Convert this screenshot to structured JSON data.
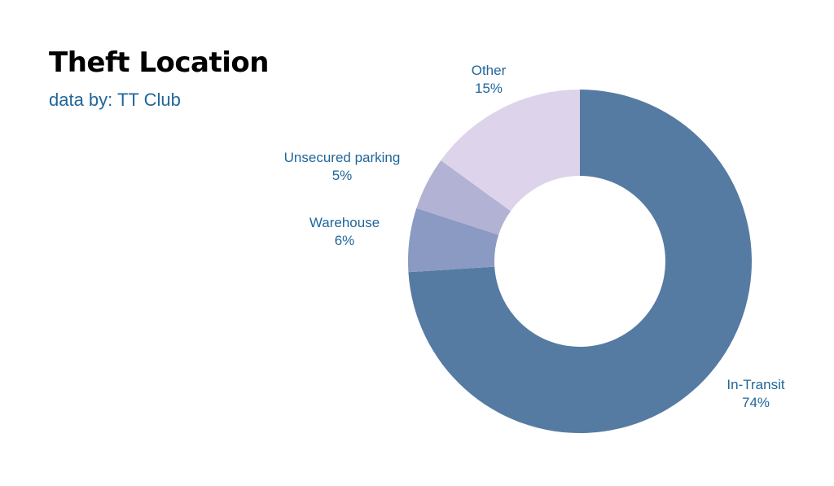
{
  "header": {
    "title": "Theft Location",
    "subtitle": "data by: TT Club"
  },
  "colors": {
    "title": "#000000",
    "subtitle": "#21669a",
    "label": "#21669a",
    "background": "#ffffff"
  },
  "chart_data": {
    "type": "pie",
    "variant": "donut",
    "title": "Theft Location",
    "subtitle": "data by: TT Club",
    "legend": "none (labels placed beside slices)",
    "slices": [
      {
        "label": "In-Transit",
        "value": 74,
        "value_label": "74%",
        "color": "#557ba3"
      },
      {
        "label": "Warehouse",
        "value": 6,
        "value_label": "6%",
        "color": "#8b9ac3"
      },
      {
        "label": "Unsecured parking",
        "value": 5,
        "value_label": "5%",
        "color": "#b2b2d4"
      },
      {
        "label": "Other",
        "value": 15,
        "value_label": "15%",
        "color": "#ddd3ea"
      }
    ]
  }
}
